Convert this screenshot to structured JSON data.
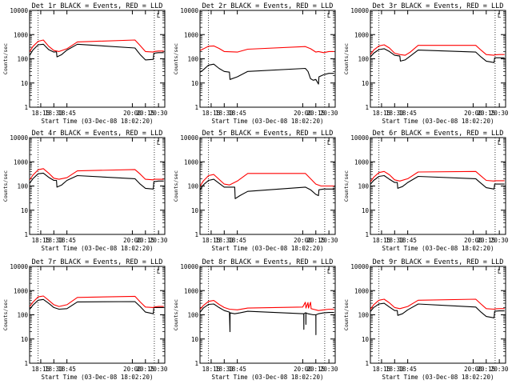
{
  "chart_data": {
    "type": "line",
    "layout": "3x3 grid",
    "y_scale": "log",
    "ylim": [
      1,
      10000
    ],
    "y_ticks": [
      "1",
      "10",
      "100",
      "1000",
      "10000"
    ],
    "x_tick_labels": [
      "18:15",
      "18:30",
      "18:45",
      "20:00",
      "20:15",
      "20:30"
    ],
    "x_ticks_hours": [
      18.25,
      18.5,
      18.75,
      20.0,
      20.25,
      20.5
    ],
    "xlim_hours": [
      18.037,
      20.62
    ],
    "xlabel": "Start Time (03-Dec-08 18:02:20)",
    "ylabel": "Counts/sec",
    "dotted_lines_hours": [
      18.2,
      20.42
    ],
    "marker_text": "L",
    "series_colors": {
      "events": "#000000",
      "lld": "#ff0000"
    },
    "panels": [
      {
        "title": "Det 1r BLACK = Events, RED = LLD",
        "series": [
          {
            "key": "events",
            "x": [
              18.04,
              18.1,
              18.2,
              18.3,
              18.4,
              18.5,
              18.55,
              18.56,
              18.65,
              18.75,
              18.95,
              20.05,
              20.15,
              20.25,
              20.4,
              20.41,
              20.5,
              20.6
            ],
            "y": [
              140,
              230,
              380,
              400,
              240,
              190,
              195,
              120,
              150,
              230,
              400,
              280,
              150,
              90,
              95,
              170,
              180,
              180
            ]
          },
          {
            "key": "lld",
            "x": [
              18.04,
              18.1,
              18.2,
              18.3,
              18.4,
              18.5,
              18.6,
              18.75,
              18.95,
              20.05,
              20.15,
              20.25,
              20.4,
              20.41,
              20.5,
              20.6
            ],
            "y": [
              200,
              320,
              530,
              600,
              330,
              220,
              200,
              260,
              500,
              600,
              350,
              200,
              190,
              200,
              210,
              210
            ]
          }
        ]
      },
      {
        "title": "Det 2r BLACK = Events, RED = LLD",
        "series": [
          {
            "key": "events",
            "x": [
              18.04,
              18.1,
              18.2,
              18.3,
              18.4,
              18.5,
              18.6,
              18.61,
              18.75,
              18.95,
              20.05,
              20.1,
              20.15,
              20.2,
              20.25,
              20.3,
              20.31,
              20.4,
              20.5,
              20.6
            ],
            "y": [
              28,
              35,
              55,
              60,
              40,
              30,
              28,
              14,
              18,
              30,
              40,
              30,
              15,
              13,
              14,
              9,
              18,
              22,
              25,
              25
            ]
          },
          {
            "key": "lld",
            "x": [
              18.04,
              18.2,
              18.3,
              18.4,
              18.5,
              18.75,
              18.95,
              20.05,
              20.15,
              20.25,
              20.3,
              20.4,
              20.5,
              20.6
            ],
            "y": [
              220,
              330,
              340,
              270,
              200,
              190,
              250,
              320,
              260,
              190,
              200,
              180,
              200,
              200
            ]
          }
        ]
      },
      {
        "title": "Det 3r BLACK = Events, RED = LLD",
        "series": [
          {
            "key": "events",
            "x": [
              18.04,
              18.1,
              18.2,
              18.3,
              18.4,
              18.5,
              18.6,
              18.61,
              18.7,
              18.8,
              18.95,
              20.05,
              20.15,
              20.25,
              20.4,
              20.41,
              20.5,
              20.6
            ],
            "y": [
              120,
              170,
              240,
              260,
              200,
              140,
              130,
              80,
              90,
              130,
              230,
              190,
              120,
              80,
              70,
              110,
              110,
              110
            ]
          },
          {
            "key": "lld",
            "x": [
              18.04,
              18.1,
              18.2,
              18.3,
              18.4,
              18.5,
              18.6,
              18.7,
              18.8,
              18.95,
              20.05,
              20.15,
              20.25,
              20.4,
              20.41,
              20.5,
              20.6
            ],
            "y": [
              150,
              230,
              340,
              380,
              280,
              170,
              150,
              140,
              190,
              360,
              360,
              230,
              150,
              140,
              145,
              150,
              150
            ]
          }
        ]
      },
      {
        "title": "Det 4r BLACK = Events, RED = LLD",
        "series": [
          {
            "key": "events",
            "x": [
              18.04,
              18.1,
              18.2,
              18.3,
              18.4,
              18.5,
              18.55,
              18.56,
              18.65,
              18.75,
              18.95,
              20.05,
              20.15,
              20.25,
              20.4,
              20.41,
              20.5,
              20.6
            ],
            "y": [
              130,
              200,
              320,
              340,
              230,
              170,
              170,
              90,
              110,
              170,
              270,
              200,
              120,
              80,
              75,
              150,
              160,
              160
            ]
          },
          {
            "key": "lld",
            "x": [
              18.04,
              18.1,
              18.2,
              18.3,
              18.4,
              18.5,
              18.6,
              18.75,
              18.95,
              20.05,
              20.15,
              20.25,
              20.4,
              20.41,
              20.5,
              20.6
            ],
            "y": [
              180,
              280,
              470,
              520,
              340,
              210,
              190,
              220,
              420,
              480,
              310,
              190,
              180,
              190,
              190,
              190
            ]
          }
        ]
      },
      {
        "title": "Det 5r BLACK = Events, RED = LLD",
        "series": [
          {
            "key": "events",
            "x": [
              18.04,
              18.1,
              18.2,
              18.3,
              18.4,
              18.5,
              18.6,
              18.7,
              18.71,
              18.8,
              18.95,
              20.05,
              20.15,
              20.25,
              20.3,
              20.31,
              20.4,
              20.5,
              20.6
            ],
            "y": [
              70,
              110,
              170,
              190,
              130,
              90,
              90,
              90,
              30,
              40,
              60,
              90,
              70,
              45,
              40,
              70,
              75,
              75,
              75
            ]
          },
          {
            "key": "lld",
            "x": [
              18.04,
              18.1,
              18.2,
              18.3,
              18.4,
              18.5,
              18.6,
              18.75,
              18.95,
              20.05,
              20.15,
              20.25,
              20.35,
              20.4,
              20.5,
              20.6
            ],
            "y": [
              100,
              160,
              270,
              300,
              190,
              120,
              110,
              160,
              330,
              330,
              200,
              120,
              100,
              100,
              100,
              100
            ]
          }
        ]
      },
      {
        "title": "Det 6r BLACK = Events, RED = LLD",
        "series": [
          {
            "key": "events",
            "x": [
              18.04,
              18.1,
              18.2,
              18.3,
              18.4,
              18.5,
              18.55,
              18.56,
              18.65,
              18.75,
              18.95,
              20.05,
              20.15,
              20.25,
              20.4,
              20.41,
              20.5,
              20.6
            ],
            "y": [
              120,
              170,
              250,
              270,
              190,
              140,
              140,
              80,
              95,
              140,
              250,
              200,
              130,
              85,
              75,
              120,
              120,
              120
            ]
          },
          {
            "key": "lld",
            "x": [
              18.04,
              18.1,
              18.2,
              18.3,
              18.4,
              18.5,
              18.6,
              18.75,
              18.95,
              20.05,
              20.15,
              20.25,
              20.4,
              20.41,
              20.5,
              20.6
            ],
            "y": [
              150,
              230,
              360,
              400,
              290,
              180,
              160,
              200,
              380,
              400,
              260,
              170,
              160,
              165,
              165,
              165
            ]
          }
        ]
      },
      {
        "title": "Det 7r BLACK = Events, RED = LLD",
        "series": [
          {
            "key": "events",
            "x": [
              18.04,
              18.1,
              18.2,
              18.3,
              18.4,
              18.5,
              18.6,
              18.75,
              18.95,
              20.05,
              20.15,
              20.25,
              20.4,
              20.41,
              20.5,
              20.6
            ],
            "y": [
              170,
              250,
              400,
              430,
              300,
              200,
              170,
              180,
              340,
              350,
              220,
              130,
              110,
              200,
              200,
              200
            ]
          },
          {
            "key": "lld",
            "x": [
              18.04,
              18.1,
              18.2,
              18.3,
              18.4,
              18.5,
              18.6,
              18.75,
              18.95,
              20.05,
              20.15,
              20.25,
              20.4,
              20.41,
              20.5,
              20.6
            ],
            "y": [
              220,
              330,
              550,
              600,
              400,
              260,
              220,
              260,
              520,
              580,
              340,
              210,
              200,
              210,
              220,
              220
            ]
          }
        ]
      },
      {
        "title": "Det 8r BLACK = Events, RED = LLD",
        "series": [
          {
            "key": "events",
            "x": [
              18.04,
              18.1,
              18.2,
              18.3,
              18.4,
              18.5,
              18.6,
              18.61,
              18.611,
              18.7,
              18.8,
              18.95,
              20.02,
              20.021,
              20.022,
              20.05,
              20.06,
              20.061,
              20.062,
              20.1,
              20.2,
              20.25,
              20.251,
              20.252,
              20.3,
              20.4,
              20.5,
              20.6
            ],
            "y": [
              130,
              190,
              270,
              280,
              200,
              150,
              130,
              20,
              120,
              110,
              120,
              140,
              110,
              25,
              110,
              120,
              120,
              40,
              120,
              110,
              100,
              100,
              15,
              100,
              110,
              120,
              125,
              125
            ]
          },
          {
            "key": "lld",
            "x": [
              18.04,
              18.1,
              18.2,
              18.3,
              18.4,
              18.5,
              18.6,
              18.75,
              18.95,
              20.0,
              20.05,
              20.06,
              20.1,
              20.11,
              20.15,
              20.16,
              20.2,
              20.3,
              20.4,
              20.5,
              20.6
            ],
            "y": [
              170,
              240,
              360,
              390,
              270,
              200,
              170,
              160,
              190,
              210,
              330,
              190,
              320,
              190,
              330,
              180,
              170,
              150,
              160,
              170,
              170
            ]
          }
        ]
      },
      {
        "title": "Det 9r BLACK = Events, RED = LLD",
        "series": [
          {
            "key": "events",
            "x": [
              18.04,
              18.1,
              18.2,
              18.3,
              18.4,
              18.5,
              18.55,
              18.56,
              18.65,
              18.75,
              18.95,
              20.05,
              20.15,
              20.25,
              20.4,
              20.41,
              20.5,
              20.6
            ],
            "y": [
              140,
              200,
              280,
              300,
              210,
              150,
              150,
              95,
              110,
              160,
              280,
              210,
              130,
              85,
              75,
              140,
              145,
              145
            ]
          },
          {
            "key": "lld",
            "x": [
              18.04,
              18.1,
              18.2,
              18.3,
              18.4,
              18.5,
              18.6,
              18.75,
              18.95,
              20.05,
              20.15,
              20.25,
              20.4,
              20.41,
              20.5,
              20.6
            ],
            "y": [
              170,
              260,
              400,
              440,
              310,
              200,
              180,
              220,
              400,
              440,
              280,
              180,
              170,
              175,
              180,
              180
            ]
          }
        ]
      }
    ]
  }
}
